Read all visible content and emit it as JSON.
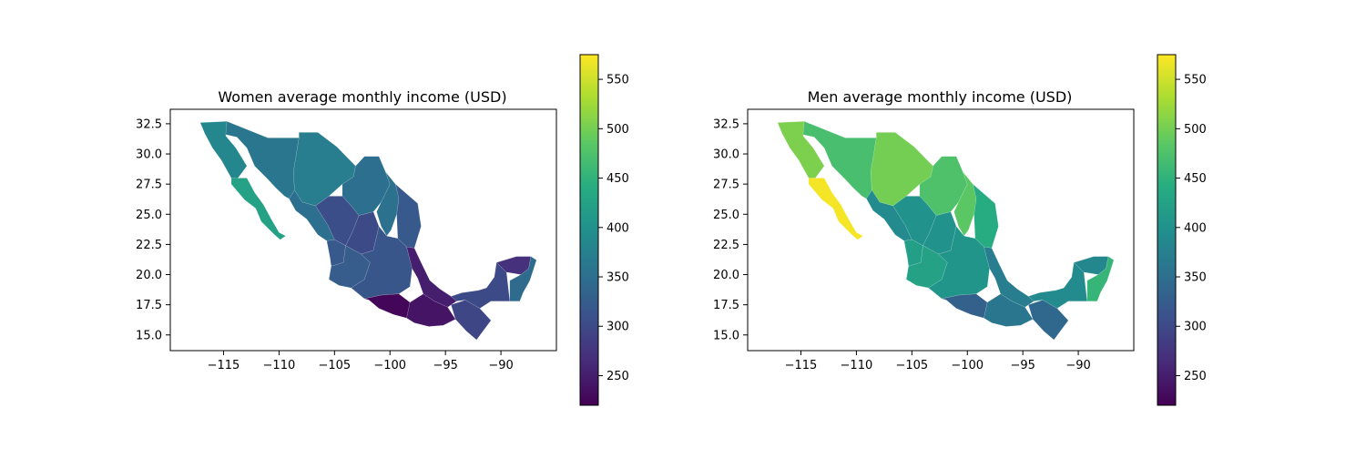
{
  "panels": [
    {
      "title": "Women average monthly income (USD)",
      "xticks": [
        "−115",
        "−110",
        "−105",
        "−100",
        "−95",
        "−90"
      ],
      "yticks": [
        "15.0",
        "17.5",
        "20.0",
        "22.5",
        "25.0",
        "27.5",
        "30.0",
        "32.5"
      ],
      "colorbar_ticks": [
        "250",
        "300",
        "350",
        "400",
        "450",
        "500",
        "550"
      ]
    },
    {
      "title": "Men average monthly income (USD)",
      "xticks": [
        "−115",
        "−110",
        "−105",
        "−100",
        "−95",
        "−90"
      ],
      "yticks": [
        "15.0",
        "17.5",
        "20.0",
        "22.5",
        "25.0",
        "27.5",
        "30.0",
        "32.5"
      ],
      "colorbar_ticks": [
        "250",
        "300",
        "350",
        "400",
        "450",
        "500",
        "550"
      ]
    }
  ],
  "chart_data": [
    {
      "type": "choropleth",
      "title": "Women average monthly income (USD)",
      "xlim": [
        -119.8,
        -85.0
      ],
      "ylim": [
        13.7,
        33.7
      ],
      "colormap": "viridis",
      "colorbar_range": [
        220,
        575
      ],
      "regions": [
        {
          "name": "Baja California",
          "value": 385
        },
        {
          "name": "Baja California Sur",
          "value": 425
        },
        {
          "name": "Sonora",
          "value": 360
        },
        {
          "name": "Chihuahua",
          "value": 370
        },
        {
          "name": "Coahuila",
          "value": 350
        },
        {
          "name": "Nuevo León",
          "value": 355
        },
        {
          "name": "Tamaulipas",
          "value": 320
        },
        {
          "name": "Sinaloa",
          "value": 350
        },
        {
          "name": "Durango",
          "value": 305
        },
        {
          "name": "Zacatecas",
          "value": 300
        },
        {
          "name": "Nayarit",
          "value": 320
        },
        {
          "name": "Jalisco",
          "value": 325
        },
        {
          "name": "Central states",
          "value": 315
        },
        {
          "name": "Veracruz",
          "value": 250
        },
        {
          "name": "Guerrero",
          "value": 225
        },
        {
          "name": "Oaxaca",
          "value": 240
        },
        {
          "name": "Chiapas",
          "value": 295
        },
        {
          "name": "Tabasco/Campeche",
          "value": 300
        },
        {
          "name": "Yucatán",
          "value": 270
        },
        {
          "name": "Quintana Roo",
          "value": 345
        }
      ]
    },
    {
      "type": "choropleth",
      "title": "Men average monthly income (USD)",
      "xlim": [
        -119.8,
        -85.0
      ],
      "ylim": [
        13.7,
        33.7
      ],
      "colormap": "viridis",
      "colorbar_range": [
        220,
        575
      ],
      "regions": [
        {
          "name": "Baja California",
          "value": 505
        },
        {
          "name": "Baja California Sur",
          "value": 570
        },
        {
          "name": "Sonora",
          "value": 470
        },
        {
          "name": "Chihuahua",
          "value": 500
        },
        {
          "name": "Coahuila",
          "value": 475
        },
        {
          "name": "Nuevo León",
          "value": 485
        },
        {
          "name": "Tamaulipas",
          "value": 440
        },
        {
          "name": "Sinaloa",
          "value": 390
        },
        {
          "name": "Durango",
          "value": 400
        },
        {
          "name": "Zacatecas",
          "value": 400
        },
        {
          "name": "Nayarit",
          "value": 420
        },
        {
          "name": "Jalisco",
          "value": 425
        },
        {
          "name": "Central states",
          "value": 405
        },
        {
          "name": "Veracruz",
          "value": 370
        },
        {
          "name": "Guerrero",
          "value": 330
        },
        {
          "name": "Oaxaca",
          "value": 360
        },
        {
          "name": "Chiapas",
          "value": 340
        },
        {
          "name": "Tabasco/Campeche",
          "value": 390
        },
        {
          "name": "Yucatán",
          "value": 385
        },
        {
          "name": "Quintana Roo",
          "value": 455
        }
      ]
    }
  ]
}
